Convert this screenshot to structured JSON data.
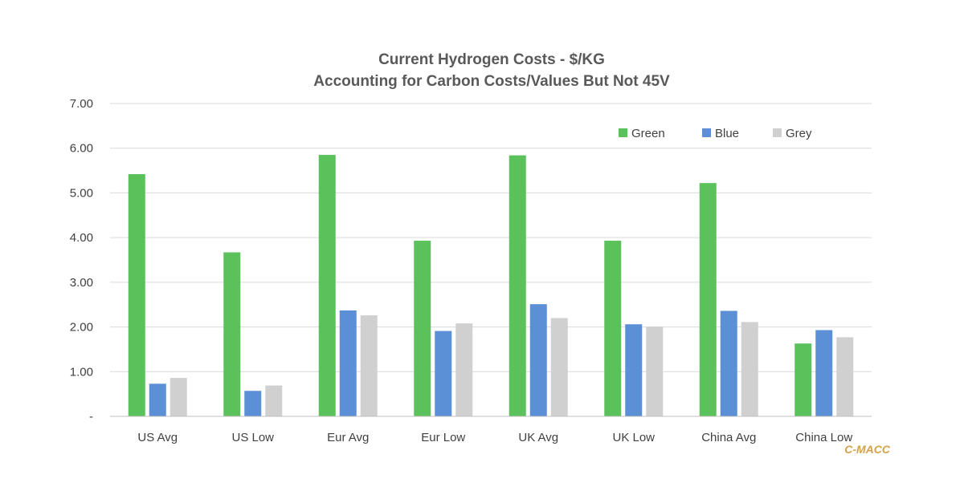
{
  "chart_data": {
    "type": "bar",
    "title": "Current Hydrogen Costs - $/KG",
    "subtitle": "Accounting for Carbon Costs/Values But Not 45V",
    "categories": [
      "US Avg",
      "US Low",
      "Eur Avg",
      "Eur Low",
      "UK Avg",
      "UK Low",
      "China Avg",
      "China Low"
    ],
    "series": [
      {
        "name": "Green",
        "color": "#5bc15b",
        "values": [
          5.42,
          3.67,
          5.85,
          3.93,
          5.84,
          3.93,
          5.22,
          1.63
        ]
      },
      {
        "name": "Blue",
        "color": "#5b8fd6",
        "values": [
          0.73,
          0.57,
          2.37,
          1.91,
          2.51,
          2.06,
          2.36,
          1.93
        ]
      },
      {
        "name": "Grey",
        "color": "#d0d0d0",
        "values": [
          0.86,
          0.69,
          2.26,
          2.08,
          2.2,
          2.01,
          2.11,
          1.77
        ]
      }
    ],
    "y_ticks": [
      "-",
      "1.00",
      "2.00",
      "3.00",
      "4.00",
      "5.00",
      "6.00",
      "7.00"
    ],
    "ylim": [
      0,
      7
    ],
    "grid": true,
    "legend_position": "top-right",
    "xlabel": "",
    "ylabel": ""
  },
  "watermark": "C-MACC"
}
